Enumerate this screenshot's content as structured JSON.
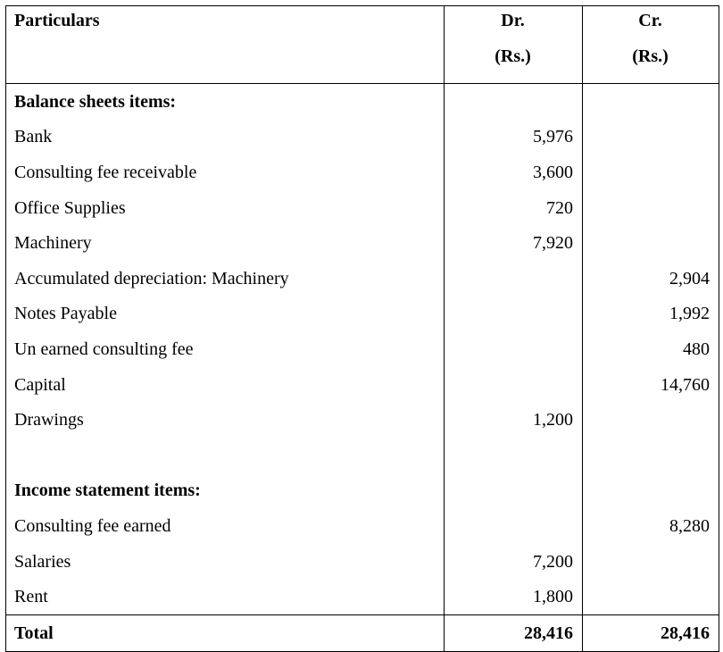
{
  "header": {
    "particulars": "Particulars",
    "dr": "Dr.",
    "dr_unit": "(Rs.)",
    "cr": "Cr.",
    "cr_unit": "(Rs.)"
  },
  "rows": [
    {
      "label": "Balance sheets items:",
      "dr": "",
      "cr": "",
      "section": true
    },
    {
      "label": "Bank",
      "dr": "5,976",
      "cr": ""
    },
    {
      "label": "Consulting fee receivable",
      "dr": "3,600",
      "cr": ""
    },
    {
      "label": "Office Supplies",
      "dr": "720",
      "cr": ""
    },
    {
      "label": "Machinery",
      "dr": "7,920",
      "cr": ""
    },
    {
      "label": "Accumulated depreciation: Machinery",
      "dr": "",
      "cr": "2,904"
    },
    {
      "label": "Notes Payable",
      "dr": "",
      "cr": "1,992"
    },
    {
      "label": "Un earned consulting fee",
      "dr": "",
      "cr": "480"
    },
    {
      "label": "Capital",
      "dr": "",
      "cr": "14,760"
    },
    {
      "label": "Drawings",
      "dr": "1,200",
      "cr": ""
    },
    {
      "label": "",
      "dr": "",
      "cr": ""
    },
    {
      "label": "Income statement items:",
      "dr": "",
      "cr": "",
      "section": true
    },
    {
      "label": "Consulting fee earned",
      "dr": "",
      "cr": "8,280"
    },
    {
      "label": "Salaries",
      "dr": "7,200",
      "cr": ""
    },
    {
      "label": "Rent",
      "dr": "1,800",
      "cr": ""
    }
  ],
  "total": {
    "label": "Total",
    "dr": "28,416",
    "cr": "28,416"
  }
}
